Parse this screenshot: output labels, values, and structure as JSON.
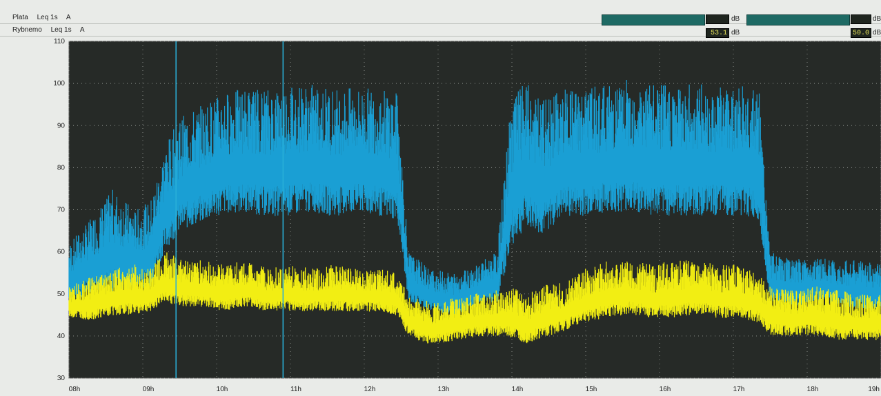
{
  "legend": {
    "row1": {
      "label": "Plata",
      "metric": "Leq 1s",
      "weighting": "A"
    },
    "row2": {
      "label": "Rybnemo",
      "metric": "Leq 1s",
      "weighting": "A"
    }
  },
  "readouts": {
    "left": {
      "timestamp": "",
      "value_top": "",
      "value_bottom": "53.1",
      "unit": "dB"
    },
    "right": {
      "timestamp": "",
      "value_top": "",
      "value_bottom": "50.0",
      "unit": "dB"
    }
  },
  "colors": {
    "background": "#262a27",
    "series_blue": "#1a9fd4",
    "series_yellow": "#f2ee13",
    "grid": "#8a8f8a",
    "cursor": "#2ab0d8"
  },
  "chart_data": {
    "type": "line",
    "title": "",
    "xlabel": "",
    "ylabel": "",
    "ylim": [
      30,
      110
    ],
    "yticks": [
      "110",
      "100",
      "90",
      "80",
      "70",
      "60",
      "50",
      "40",
      "30"
    ],
    "xlim": [
      8,
      19
    ],
    "xticks": [
      "08h",
      "09h",
      "10h",
      "11h",
      "12h",
      "13h",
      "14h",
      "15h",
      "16h",
      "17h",
      "18h",
      "19h"
    ],
    "grid": true,
    "cursors_hour": [
      9.45,
      10.9
    ],
    "series": [
      {
        "color": "#1a9fd4",
        "upper_envelope": [
          [
            8.0,
            62
          ],
          [
            8.3,
            68
          ],
          [
            8.6,
            75
          ],
          [
            8.9,
            70
          ],
          [
            9.1,
            72
          ],
          [
            9.3,
            85
          ],
          [
            9.5,
            92
          ],
          [
            9.8,
            95
          ],
          [
            10.1,
            98
          ],
          [
            10.4,
            99
          ],
          [
            10.7,
            99
          ],
          [
            11.0,
            100
          ],
          [
            11.3,
            100
          ],
          [
            11.6,
            99
          ],
          [
            11.9,
            99
          ],
          [
            12.2,
            99
          ],
          [
            12.45,
            98
          ],
          [
            12.6,
            60
          ],
          [
            12.9,
            56
          ],
          [
            13.2,
            55
          ],
          [
            13.5,
            57
          ],
          [
            13.8,
            60
          ],
          [
            14.0,
            98
          ],
          [
            14.2,
            100
          ],
          [
            14.4,
            96
          ],
          [
            14.7,
            99
          ],
          [
            15.0,
            99
          ],
          [
            15.3,
            100
          ],
          [
            15.6,
            101
          ],
          [
            15.9,
            100
          ],
          [
            16.2,
            100
          ],
          [
            16.5,
            100
          ],
          [
            16.8,
            100
          ],
          [
            17.1,
            100
          ],
          [
            17.35,
            98
          ],
          [
            17.5,
            60
          ],
          [
            17.8,
            58
          ],
          [
            18.1,
            59
          ],
          [
            18.4,
            58
          ],
          [
            18.7,
            58
          ],
          [
            19.0,
            57
          ]
        ],
        "lower_envelope": [
          [
            8.0,
            45
          ],
          [
            8.3,
            47
          ],
          [
            8.6,
            46
          ],
          [
            8.9,
            47
          ],
          [
            9.1,
            48
          ],
          [
            9.3,
            56
          ],
          [
            9.5,
            60
          ],
          [
            9.8,
            62
          ],
          [
            10.1,
            64
          ],
          [
            10.4,
            64
          ],
          [
            10.7,
            63
          ],
          [
            11.0,
            63
          ],
          [
            11.3,
            64
          ],
          [
            11.6,
            63
          ],
          [
            11.9,
            64
          ],
          [
            12.2,
            63
          ],
          [
            12.45,
            62
          ],
          [
            12.6,
            46
          ],
          [
            12.9,
            44
          ],
          [
            13.2,
            43
          ],
          [
            13.5,
            45
          ],
          [
            13.8,
            46
          ],
          [
            14.0,
            55
          ],
          [
            14.2,
            60
          ],
          [
            14.4,
            58
          ],
          [
            14.7,
            63
          ],
          [
            15.0,
            63
          ],
          [
            15.3,
            64
          ],
          [
            15.6,
            64
          ],
          [
            15.9,
            63
          ],
          [
            16.2,
            63
          ],
          [
            16.5,
            63
          ],
          [
            16.8,
            63
          ],
          [
            17.1,
            63
          ],
          [
            17.35,
            62
          ],
          [
            17.5,
            46
          ],
          [
            17.8,
            45
          ],
          [
            18.1,
            46
          ],
          [
            18.4,
            45
          ],
          [
            18.7,
            44
          ],
          [
            19.0,
            44
          ]
        ]
      },
      {
        "color": "#f2ee13",
        "upper_envelope": [
          [
            8.0,
            52
          ],
          [
            8.3,
            54
          ],
          [
            8.6,
            56
          ],
          [
            8.9,
            57
          ],
          [
            9.1,
            56
          ],
          [
            9.3,
            60
          ],
          [
            9.5,
            59
          ],
          [
            9.8,
            58
          ],
          [
            10.1,
            57
          ],
          [
            10.4,
            58
          ],
          [
            10.7,
            56
          ],
          [
            11.0,
            57
          ],
          [
            11.3,
            56
          ],
          [
            11.6,
            57
          ],
          [
            11.9,
            56
          ],
          [
            12.2,
            56
          ],
          [
            12.45,
            55
          ],
          [
            12.6,
            50
          ],
          [
            12.9,
            48
          ],
          [
            13.2,
            49
          ],
          [
            13.5,
            50
          ],
          [
            13.8,
            51
          ],
          [
            14.0,
            52
          ],
          [
            14.2,
            50
          ],
          [
            14.4,
            52
          ],
          [
            14.7,
            53
          ],
          [
            15.0,
            56
          ],
          [
            15.3,
            58
          ],
          [
            15.6,
            58
          ],
          [
            15.9,
            57
          ],
          [
            16.2,
            58
          ],
          [
            16.5,
            58
          ],
          [
            16.8,
            57
          ],
          [
            17.1,
            57
          ],
          [
            17.35,
            55
          ],
          [
            17.5,
            52
          ],
          [
            17.8,
            51
          ],
          [
            18.1,
            52
          ],
          [
            18.4,
            51
          ],
          [
            18.7,
            50
          ],
          [
            19.0,
            50
          ]
        ],
        "lower_envelope": [
          [
            8.0,
            43
          ],
          [
            8.3,
            42
          ],
          [
            8.6,
            43
          ],
          [
            8.9,
            43
          ],
          [
            9.1,
            44
          ],
          [
            9.3,
            46
          ],
          [
            9.5,
            45
          ],
          [
            9.8,
            45
          ],
          [
            10.1,
            44
          ],
          [
            10.4,
            45
          ],
          [
            10.7,
            44
          ],
          [
            11.0,
            44
          ],
          [
            11.3,
            44
          ],
          [
            11.6,
            44
          ],
          [
            11.9,
            44
          ],
          [
            12.2,
            44
          ],
          [
            12.45,
            43
          ],
          [
            12.6,
            38
          ],
          [
            12.9,
            36
          ],
          [
            13.2,
            37
          ],
          [
            13.5,
            38
          ],
          [
            13.8,
            38
          ],
          [
            14.0,
            37
          ],
          [
            14.2,
            36
          ],
          [
            14.4,
            37
          ],
          [
            14.7,
            39
          ],
          [
            15.0,
            41
          ],
          [
            15.3,
            42
          ],
          [
            15.6,
            43
          ],
          [
            15.9,
            42
          ],
          [
            16.2,
            42
          ],
          [
            16.5,
            43
          ],
          [
            16.8,
            42
          ],
          [
            17.1,
            42
          ],
          [
            17.35,
            41
          ],
          [
            17.5,
            38
          ],
          [
            17.8,
            38
          ],
          [
            18.1,
            38
          ],
          [
            18.4,
            37
          ],
          [
            18.7,
            37
          ],
          [
            19.0,
            37
          ]
        ]
      }
    ]
  }
}
